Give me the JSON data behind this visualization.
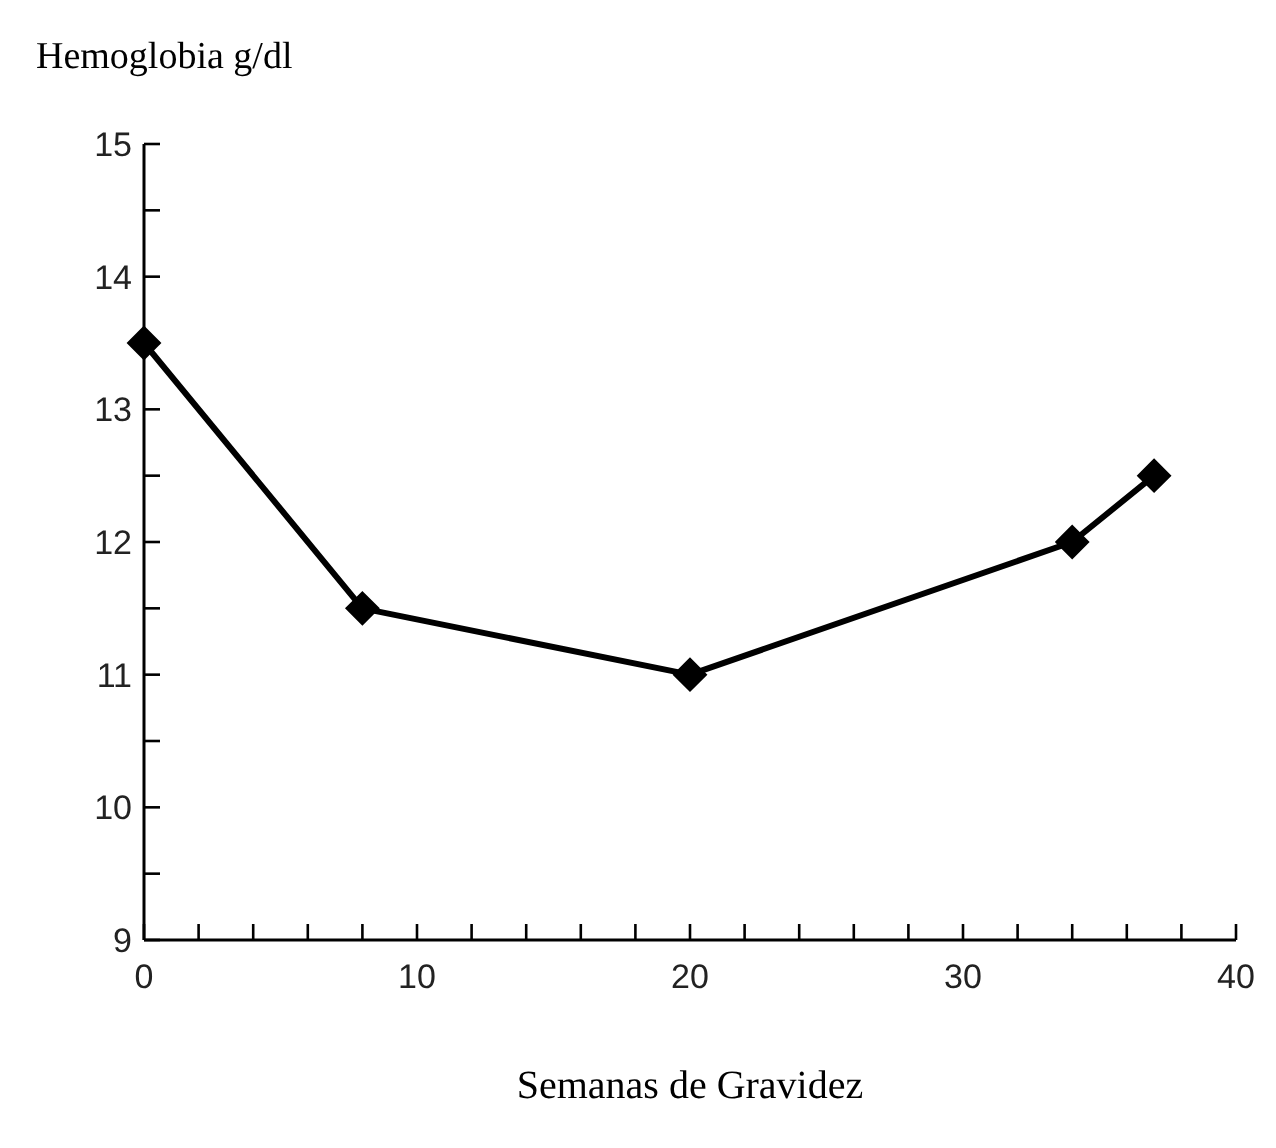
{
  "chart_data": {
    "type": "line",
    "xlabel": "Semanas de Gravidez",
    "ylabel": "Hemoglobia g/dl",
    "x": [
      0,
      8,
      20,
      34,
      37
    ],
    "series": [
      {
        "color": "#000000",
        "values": [
          13.5,
          11.5,
          11,
          12,
          12.5
        ]
      }
    ],
    "xlim": [
      0,
      40
    ],
    "xticks": [
      0,
      {
        "value": 2,
        "label": null
      },
      {
        "value": 4,
        "label": null
      },
      {
        "value": 6,
        "label": null
      },
      {
        "value": 8,
        "label": null
      },
      10,
      {
        "value": 12,
        "label": null
      },
      {
        "value": 14,
        "label": null
      },
      {
        "value": 16,
        "label": null
      },
      {
        "value": 18,
        "label": null
      },
      20,
      {
        "value": 22,
        "label": null
      },
      {
        "value": 24,
        "label": null
      },
      {
        "value": 26,
        "label": null
      },
      {
        "value": 28,
        "label": null
      },
      30,
      {
        "value": 32,
        "label": null
      },
      {
        "value": 34,
        "label": null
      },
      {
        "value": 36,
        "label": null
      },
      {
        "value": 38,
        "label": null
      },
      40
    ],
    "ylim": [
      9,
      15
    ],
    "yticks": [
      9,
      {
        "value": 9.5,
        "label": null
      },
      10,
      {
        "value": 10.5,
        "label": null
      },
      11,
      {
        "value": 11.5,
        "label": null
      },
      12,
      {
        "value": 12.5,
        "label": null
      },
      13,
      {
        "value": 13.5,
        "label": null
      },
      14,
      {
        "value": 14.5,
        "label": null
      },
      15
    ],
    "marker": "diamond",
    "line_style": "solid"
  }
}
